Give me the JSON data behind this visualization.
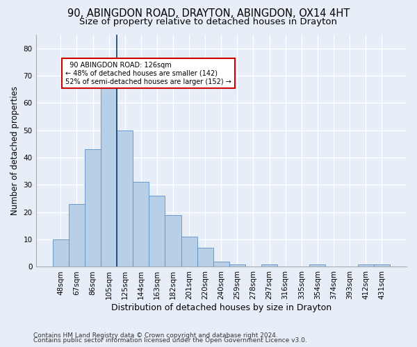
{
  "title1": "90, ABINGDON ROAD, DRAYTON, ABINGDON, OX14 4HT",
  "title2": "Size of property relative to detached houses in Drayton",
  "xlabel": "Distribution of detached houses by size in Drayton",
  "ylabel": "Number of detached properties",
  "footnote1": "Contains HM Land Registry data © Crown copyright and database right 2024.",
  "footnote2": "Contains public sector information licensed under the Open Government Licence v3.0.",
  "categories": [
    "48sqm",
    "67sqm",
    "86sqm",
    "105sqm",
    "125sqm",
    "144sqm",
    "163sqm",
    "182sqm",
    "201sqm",
    "220sqm",
    "240sqm",
    "259sqm",
    "278sqm",
    "297sqm",
    "316sqm",
    "335sqm",
    "354sqm",
    "374sqm",
    "393sqm",
    "412sqm",
    "431sqm"
  ],
  "values": [
    10,
    23,
    43,
    66,
    50,
    31,
    26,
    19,
    11,
    7,
    2,
    1,
    0,
    1,
    0,
    0,
    1,
    0,
    0,
    1,
    1
  ],
  "bar_color": "#b8cfe8",
  "bar_edge_color": "#5b8ec4",
  "vline_bar_index": 4,
  "vline_color": "#1a3a6e",
  "annotation_text": "  90 ABINGDON ROAD: 126sqm\n← 48% of detached houses are smaller (142)\n52% of semi-detached houses are larger (152) →",
  "annotation_box_color": "#ffffff",
  "annotation_box_edge": "#cc0000",
  "ylim": [
    0,
    85
  ],
  "yticks": [
    0,
    10,
    20,
    30,
    40,
    50,
    60,
    70,
    80
  ],
  "bg_color": "#e8eef8",
  "plot_bg_color": "#e8eef8",
  "grid_color": "#ffffff",
  "title1_fontsize": 10.5,
  "title2_fontsize": 9.5,
  "ylabel_fontsize": 8.5,
  "xlabel_fontsize": 9,
  "tick_fontsize": 7.5,
  "footnote_fontsize": 6.5
}
